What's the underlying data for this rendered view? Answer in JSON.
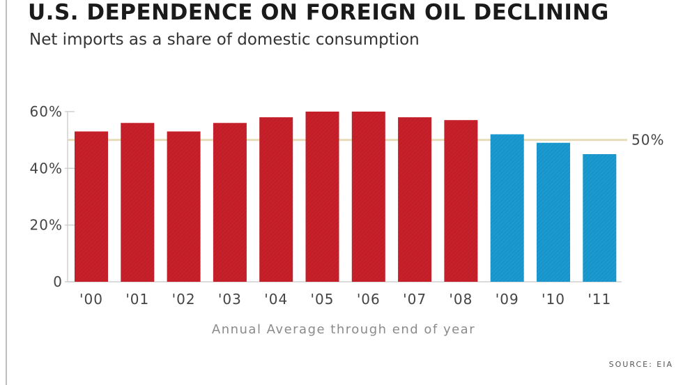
{
  "title": "U.S. DEPENDENCE ON FOREIGN OIL DECLINING",
  "subtitle": "Net imports as a share of domestic consumption",
  "source": "SOURCE: EIA",
  "colors": {
    "historical": "#c8202a",
    "recent": "#1a9ad0",
    "reference_line": "#e8dcb8",
    "axis": "#d0d0d0"
  },
  "chart_data": {
    "type": "bar",
    "title": "U.S. DEPENDENCE ON FOREIGN OIL DECLINING",
    "subtitle": "Net imports as a share of domestic consumption",
    "xlabel": "Annual Average through end of year",
    "ylabel": "",
    "categories": [
      "'00",
      "'01",
      "'02",
      "'03",
      "'04",
      "'05",
      "'06",
      "'07",
      "'08",
      "'09",
      "'10",
      "'11"
    ],
    "values": [
      53,
      56,
      53,
      56,
      58,
      60,
      60,
      58,
      57,
      52,
      49,
      45
    ],
    "bar_colors": [
      "historical",
      "historical",
      "historical",
      "historical",
      "historical",
      "historical",
      "historical",
      "historical",
      "historical",
      "recent",
      "recent",
      "recent"
    ],
    "ylim": [
      0,
      60
    ],
    "yticks": [
      {
        "value": 0,
        "label": "0"
      },
      {
        "value": 20,
        "label": "20%"
      },
      {
        "value": 40,
        "label": "40%"
      },
      {
        "value": 60,
        "label": "60%"
      }
    ],
    "reference_line": {
      "value": 50,
      "label": "50%"
    },
    "grid": false,
    "legend": "none"
  }
}
